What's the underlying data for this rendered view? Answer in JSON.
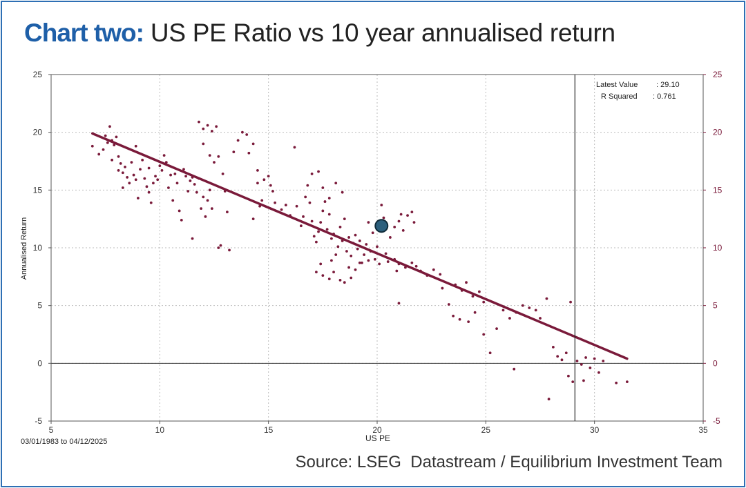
{
  "title": {
    "lead": "Chart two:",
    "rest": " US PE Ratio vs 10 year annualised return"
  },
  "source": "Source: LSEG  Datastream / Equilibrium Investment Team",
  "colors": {
    "brand": "#1e5fa8",
    "series": "#7a1a3a",
    "highlight": "#2b5f7c",
    "grid": "#bbbbbb"
  },
  "chart_data": {
    "type": "scatter",
    "xlabel": "US PE",
    "ylabel": "Annualised Return",
    "xlim": [
      5,
      35
    ],
    "ylim": [
      -5,
      25
    ],
    "xticks": [
      5,
      10,
      15,
      20,
      25,
      30,
      35
    ],
    "yticks": [
      -5,
      0,
      5,
      10,
      15,
      20,
      25
    ],
    "grid": true,
    "date_range": "03/01/1983 to 04/12/2025",
    "annotations": [
      {
        "label": "Latest Value",
        "value": ": 29.10"
      },
      {
        "label": "R Squared",
        "value": ": 0.761"
      }
    ],
    "latest_value_x": 29.1,
    "trend_line": {
      "x": [
        6.9,
        31.5
      ],
      "y": [
        19.9,
        0.4
      ]
    },
    "highlight_point": {
      "x": 20.2,
      "y": 11.9
    },
    "points": [
      [
        6.9,
        18.8
      ],
      [
        7.2,
        18.1
      ],
      [
        7.4,
        18.5
      ],
      [
        7.5,
        19.7
      ],
      [
        7.6,
        19.1
      ],
      [
        7.7,
        20.5
      ],
      [
        7.8,
        19.3
      ],
      [
        7.8,
        17.6
      ],
      [
        7.9,
        18.9
      ],
      [
        8.0,
        19.6
      ],
      [
        8.1,
        17.9
      ],
      [
        8.1,
        16.7
      ],
      [
        8.2,
        17.3
      ],
      [
        8.3,
        16.5
      ],
      [
        8.3,
        15.2
      ],
      [
        8.4,
        17.0
      ],
      [
        8.5,
        16.1
      ],
      [
        8.6,
        15.6
      ],
      [
        8.7,
        17.4
      ],
      [
        8.8,
        16.3
      ],
      [
        8.9,
        15.9
      ],
      [
        8.9,
        18.8
      ],
      [
        9.0,
        14.3
      ],
      [
        9.1,
        16.8
      ],
      [
        9.2,
        17.6
      ],
      [
        9.3,
        16.0
      ],
      [
        9.4,
        15.3
      ],
      [
        9.5,
        16.9
      ],
      [
        9.5,
        14.8
      ],
      [
        9.6,
        13.9
      ],
      [
        9.7,
        15.6
      ],
      [
        9.8,
        16.2
      ],
      [
        9.9,
        15.9
      ],
      [
        10.0,
        17.1
      ],
      [
        10.1,
        16.7
      ],
      [
        10.2,
        18.0
      ],
      [
        10.3,
        17.4
      ],
      [
        10.4,
        15.2
      ],
      [
        10.5,
        16.3
      ],
      [
        10.6,
        14.1
      ],
      [
        10.7,
        16.4
      ],
      [
        10.8,
        15.6
      ],
      [
        10.9,
        13.2
      ],
      [
        11.0,
        12.4
      ],
      [
        11.1,
        16.8
      ],
      [
        11.2,
        16.2
      ],
      [
        11.3,
        14.9
      ],
      [
        11.4,
        15.8
      ],
      [
        11.5,
        16.1
      ],
      [
        11.6,
        15.5
      ],
      [
        11.7,
        14.8
      ],
      [
        11.8,
        16.0
      ],
      [
        11.9,
        13.4
      ],
      [
        12.0,
        14.4
      ],
      [
        12.1,
        12.7
      ],
      [
        12.2,
        14.1
      ],
      [
        12.3,
        15.0
      ],
      [
        12.4,
        13.4
      ],
      [
        11.5,
        10.8
      ],
      [
        11.8,
        20.9
      ],
      [
        12.0,
        20.3
      ],
      [
        12.2,
        20.6
      ],
      [
        12.4,
        20.1
      ],
      [
        12.6,
        20.5
      ],
      [
        12.0,
        19.0
      ],
      [
        12.3,
        18.0
      ],
      [
        12.5,
        17.4
      ],
      [
        12.7,
        17.9
      ],
      [
        12.9,
        16.4
      ],
      [
        13.0,
        14.9
      ],
      [
        13.1,
        13.1
      ],
      [
        12.8,
        10.2
      ],
      [
        13.2,
        9.8
      ],
      [
        12.7,
        10.0
      ],
      [
        13.4,
        18.3
      ],
      [
        13.6,
        19.3
      ],
      [
        13.8,
        20.0
      ],
      [
        14.0,
        19.8
      ],
      [
        14.1,
        18.2
      ],
      [
        14.3,
        19.0
      ],
      [
        14.5,
        16.7
      ],
      [
        14.5,
        15.6
      ],
      [
        14.6,
        13.6
      ],
      [
        14.7,
        14.1
      ],
      [
        14.3,
        12.5
      ],
      [
        14.8,
        15.9
      ],
      [
        15.0,
        16.2
      ],
      [
        15.1,
        15.4
      ],
      [
        15.2,
        14.9
      ],
      [
        15.3,
        13.9
      ],
      [
        15.6,
        13.3
      ],
      [
        15.8,
        13.7
      ],
      [
        16.0,
        12.8
      ],
      [
        16.2,
        18.7
      ],
      [
        16.3,
        13.6
      ],
      [
        16.5,
        11.9
      ],
      [
        16.6,
        12.7
      ],
      [
        16.7,
        14.4
      ],
      [
        16.8,
        15.4
      ],
      [
        16.9,
        13.9
      ],
      [
        17.0,
        12.3
      ],
      [
        17.1,
        11.0
      ],
      [
        17.2,
        10.5
      ],
      [
        17.3,
        11.4
      ],
      [
        17.4,
        12.2
      ],
      [
        17.5,
        13.2
      ],
      [
        17.6,
        14.0
      ],
      [
        17.7,
        11.6
      ],
      [
        17.8,
        12.9
      ],
      [
        17.9,
        10.8
      ],
      [
        18.0,
        11.2
      ],
      [
        18.1,
        9.4
      ],
      [
        18.2,
        10.1
      ],
      [
        18.3,
        11.8
      ],
      [
        18.4,
        10.6
      ],
      [
        18.5,
        12.5
      ],
      [
        18.6,
        9.7
      ],
      [
        18.7,
        10.9
      ],
      [
        18.8,
        9.3
      ],
      [
        18.9,
        10.4
      ],
      [
        19.0,
        11.1
      ],
      [
        19.1,
        9.9
      ],
      [
        19.2,
        10.6
      ],
      [
        19.3,
        8.7
      ],
      [
        19.4,
        9.4
      ],
      [
        19.5,
        10.3
      ],
      [
        19.6,
        8.9
      ],
      [
        19.7,
        9.7
      ],
      [
        19.8,
        11.3
      ],
      [
        19.9,
        9.0
      ],
      [
        20.0,
        10.1
      ],
      [
        20.1,
        8.6
      ],
      [
        20.2,
        13.7
      ],
      [
        20.3,
        12.6
      ],
      [
        20.4,
        9.5
      ],
      [
        20.6,
        10.9
      ],
      [
        20.8,
        11.8
      ],
      [
        21.0,
        12.3
      ],
      [
        21.2,
        11.5
      ],
      [
        21.4,
        12.8
      ],
      [
        21.6,
        13.1
      ],
      [
        21.7,
        12.2
      ],
      [
        17.0,
        16.4
      ],
      [
        17.3,
        16.6
      ],
      [
        17.5,
        15.2
      ],
      [
        17.8,
        14.3
      ],
      [
        18.1,
        15.6
      ],
      [
        18.4,
        14.8
      ],
      [
        17.2,
        7.9
      ],
      [
        17.5,
        7.6
      ],
      [
        17.8,
        7.3
      ],
      [
        18.0,
        7.9
      ],
      [
        18.3,
        7.2
      ],
      [
        18.5,
        7.0
      ],
      [
        18.8,
        7.4
      ],
      [
        19.0,
        8.1
      ],
      [
        17.4,
        8.6
      ],
      [
        17.9,
        8.9
      ],
      [
        18.7,
        8.3
      ],
      [
        19.2,
        8.7
      ],
      [
        20.5,
        8.8
      ],
      [
        20.8,
        9.0
      ],
      [
        21.0,
        8.6
      ],
      [
        21.3,
        8.3
      ],
      [
        21.6,
        8.7
      ],
      [
        21.8,
        8.4
      ],
      [
        22.0,
        8.0
      ],
      [
        22.3,
        7.6
      ],
      [
        22.6,
        8.1
      ],
      [
        22.9,
        7.7
      ],
      [
        23.0,
        6.5
      ],
      [
        23.3,
        5.1
      ],
      [
        23.6,
        6.8
      ],
      [
        23.9,
        6.3
      ],
      [
        24.1,
        7.0
      ],
      [
        24.4,
        5.8
      ],
      [
        24.7,
        6.2
      ],
      [
        24.9,
        5.3
      ],
      [
        23.5,
        4.1
      ],
      [
        23.8,
        3.8
      ],
      [
        24.2,
        3.6
      ],
      [
        24.5,
        4.4
      ],
      [
        24.9,
        2.5
      ],
      [
        25.2,
        0.9
      ],
      [
        25.8,
        4.6
      ],
      [
        26.1,
        3.9
      ],
      [
        26.4,
        4.4
      ],
      [
        26.7,
        5.0
      ],
      [
        27.0,
        4.8
      ],
      [
        27.3,
        4.6
      ],
      [
        27.5,
        3.9
      ],
      [
        27.8,
        5.6
      ],
      [
        25.5,
        3.0
      ],
      [
        26.3,
        -0.5
      ],
      [
        28.1,
        1.4
      ],
      [
        28.3,
        0.6
      ],
      [
        28.5,
        0.3
      ],
      [
        28.7,
        0.9
      ],
      [
        28.9,
        5.3
      ],
      [
        29.0,
        -1.6
      ],
      [
        29.2,
        0.2
      ],
      [
        29.4,
        -0.1
      ],
      [
        29.6,
        0.5
      ],
      [
        29.8,
        -0.4
      ],
      [
        30.0,
        0.4
      ],
      [
        30.2,
        -0.8
      ],
      [
        30.4,
        0.2
      ],
      [
        28.8,
        -1.1
      ],
      [
        27.9,
        -3.1
      ],
      [
        29.5,
        -1.5
      ],
      [
        31.0,
        -1.7
      ],
      [
        31.5,
        -1.6
      ],
      [
        20.1,
        11.7
      ],
      [
        19.6,
        12.2
      ],
      [
        21.1,
        12.9
      ],
      [
        20.9,
        8.0
      ],
      [
        21.0,
        5.2
      ]
    ]
  }
}
